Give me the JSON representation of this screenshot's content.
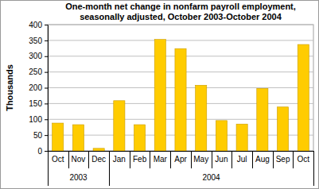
{
  "chart_data": {
    "type": "bar",
    "title": "One-month net change in nonfarm payroll employment, seasonally adjusted, October 2003-October 2004",
    "y_label": "Thousands",
    "categories": [
      "Oct",
      "Nov",
      "Dec",
      "Jan",
      "Feb",
      "Mar",
      "Apr",
      "May",
      "Jun",
      "Jul",
      "Aug",
      "Sep",
      "Oct"
    ],
    "years": [
      "2003",
      "2003",
      "2003",
      "2004",
      "2004",
      "2004",
      "2004",
      "2004",
      "2004",
      "2004",
      "2004",
      "2004",
      "2004"
    ],
    "values": [
      88,
      83,
      8,
      159,
      83,
      353,
      324,
      208,
      96,
      85,
      198,
      139,
      337
    ],
    "color": "#ffcc00",
    "ylim": [
      0,
      400
    ],
    "yticks": [
      0,
      50,
      100,
      150,
      200,
      250,
      300,
      350,
      400
    ],
    "grid": true
  }
}
